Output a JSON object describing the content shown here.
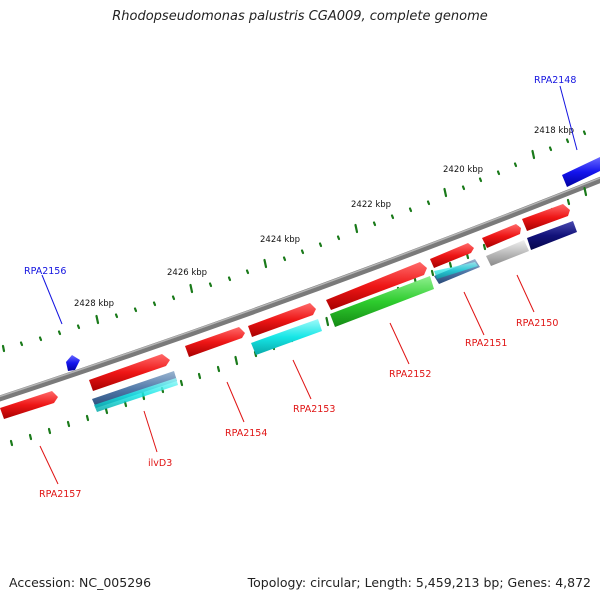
{
  "title": "Rhodopseudomonas palustris CGA009, complete genome",
  "footer": {
    "accession": "Accession: NC_005296",
    "topology": "Topology: circular; Length: 5,459,213 bp; Genes: 4,872"
  },
  "scale": {
    "ticks": [
      "2418 kbp",
      "2420 kbp",
      "2422 kbp",
      "2424 kbp",
      "2426 kbp",
      "2428 kbp"
    ]
  },
  "features": [
    {
      "name": "RPA2148",
      "strand": "forward",
      "color": "#1414e0"
    },
    {
      "name": "RPA2150",
      "strand": "reverse",
      "color": "#e01414"
    },
    {
      "name": "RPA2151",
      "strand": "reverse",
      "color": "#e01414"
    },
    {
      "name": "RPA2152",
      "strand": "reverse",
      "color": "#e01414"
    },
    {
      "name": "RPA2153",
      "strand": "reverse",
      "color": "#e01414"
    },
    {
      "name": "RPA2154",
      "strand": "reverse",
      "color": "#e01414"
    },
    {
      "name": "ilvD3",
      "strand": "reverse",
      "color": "#e01414"
    },
    {
      "name": "RPA2156",
      "strand": "forward",
      "color": "#1414e0"
    },
    {
      "name": "RPA2157",
      "strand": "reverse",
      "color": "#e01414"
    }
  ],
  "colors": {
    "backbone": "#7a7a7a",
    "ticks": "#1a7a1a",
    "forward_cds": "#1a1aee",
    "reverse_cds": "#ee1a1a",
    "cyan_track": "#19e6e6",
    "green_track": "#2ecc2e",
    "gray_track": "#b8b8b8",
    "navy_track": "#10106e"
  }
}
